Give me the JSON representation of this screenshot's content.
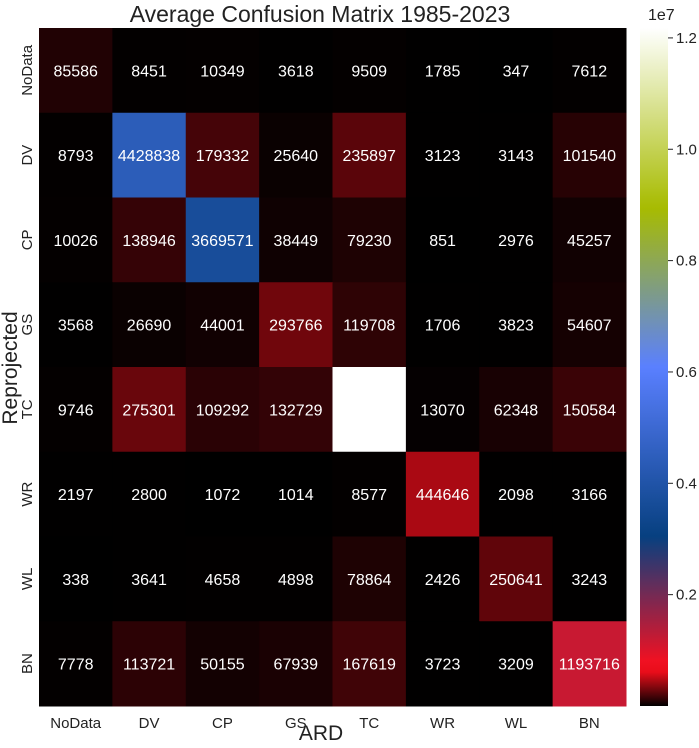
{
  "chart_data": {
    "type": "heatmap",
    "title": "Average Confusion Matrix 1985-2023",
    "xlabel": "ARD",
    "ylabel": "Reprojected",
    "x_categories": [
      "NoData",
      "DV",
      "CP",
      "GS",
      "TC",
      "WR",
      "WL",
      "BN"
    ],
    "y_categories": [
      "NoData",
      "DV",
      "CP",
      "GS",
      "TC",
      "WR",
      "WL",
      "BN"
    ],
    "values": [
      [
        85586,
        8451,
        10349,
        3618,
        9509,
        1785,
        347,
        7612
      ],
      [
        8793,
        4428838,
        179332,
        25640,
        235897,
        3123,
        3143,
        101540
      ],
      [
        10026,
        138946,
        3669571,
        38449,
        79230,
        851,
        2976,
        45257
      ],
      [
        3568,
        26690,
        44001,
        293766,
        119708,
        1706,
        3823,
        54607
      ],
      [
        9746,
        275301,
        109292,
        132729,
        12178023,
        13070,
        62348,
        150584
      ],
      [
        2197,
        2800,
        1072,
        1014,
        8577,
        444646,
        2098,
        3166
      ],
      [
        338,
        3641,
        4658,
        4898,
        78864,
        2426,
        250641,
        3243
      ],
      [
        7778,
        113721,
        50155,
        67939,
        167619,
        3723,
        3209,
        1193716
      ]
    ],
    "colormap": "gist_stern",
    "colorbar": {
      "range": [
        0,
        12178023
      ],
      "ticks": [
        0.2,
        0.4,
        0.6,
        0.8,
        1.0,
        1.2
      ],
      "tick_labels": [
        "0.2",
        "0.4",
        "0.6",
        "0.8",
        "1.0",
        "1.2"
      ],
      "multiplier_label": "1e7",
      "tick_scale": 10000000
    },
    "grid": false,
    "colors": {
      "cell_text": "#ffffff",
      "low": "#000000",
      "high": "#ffffff"
    }
  }
}
